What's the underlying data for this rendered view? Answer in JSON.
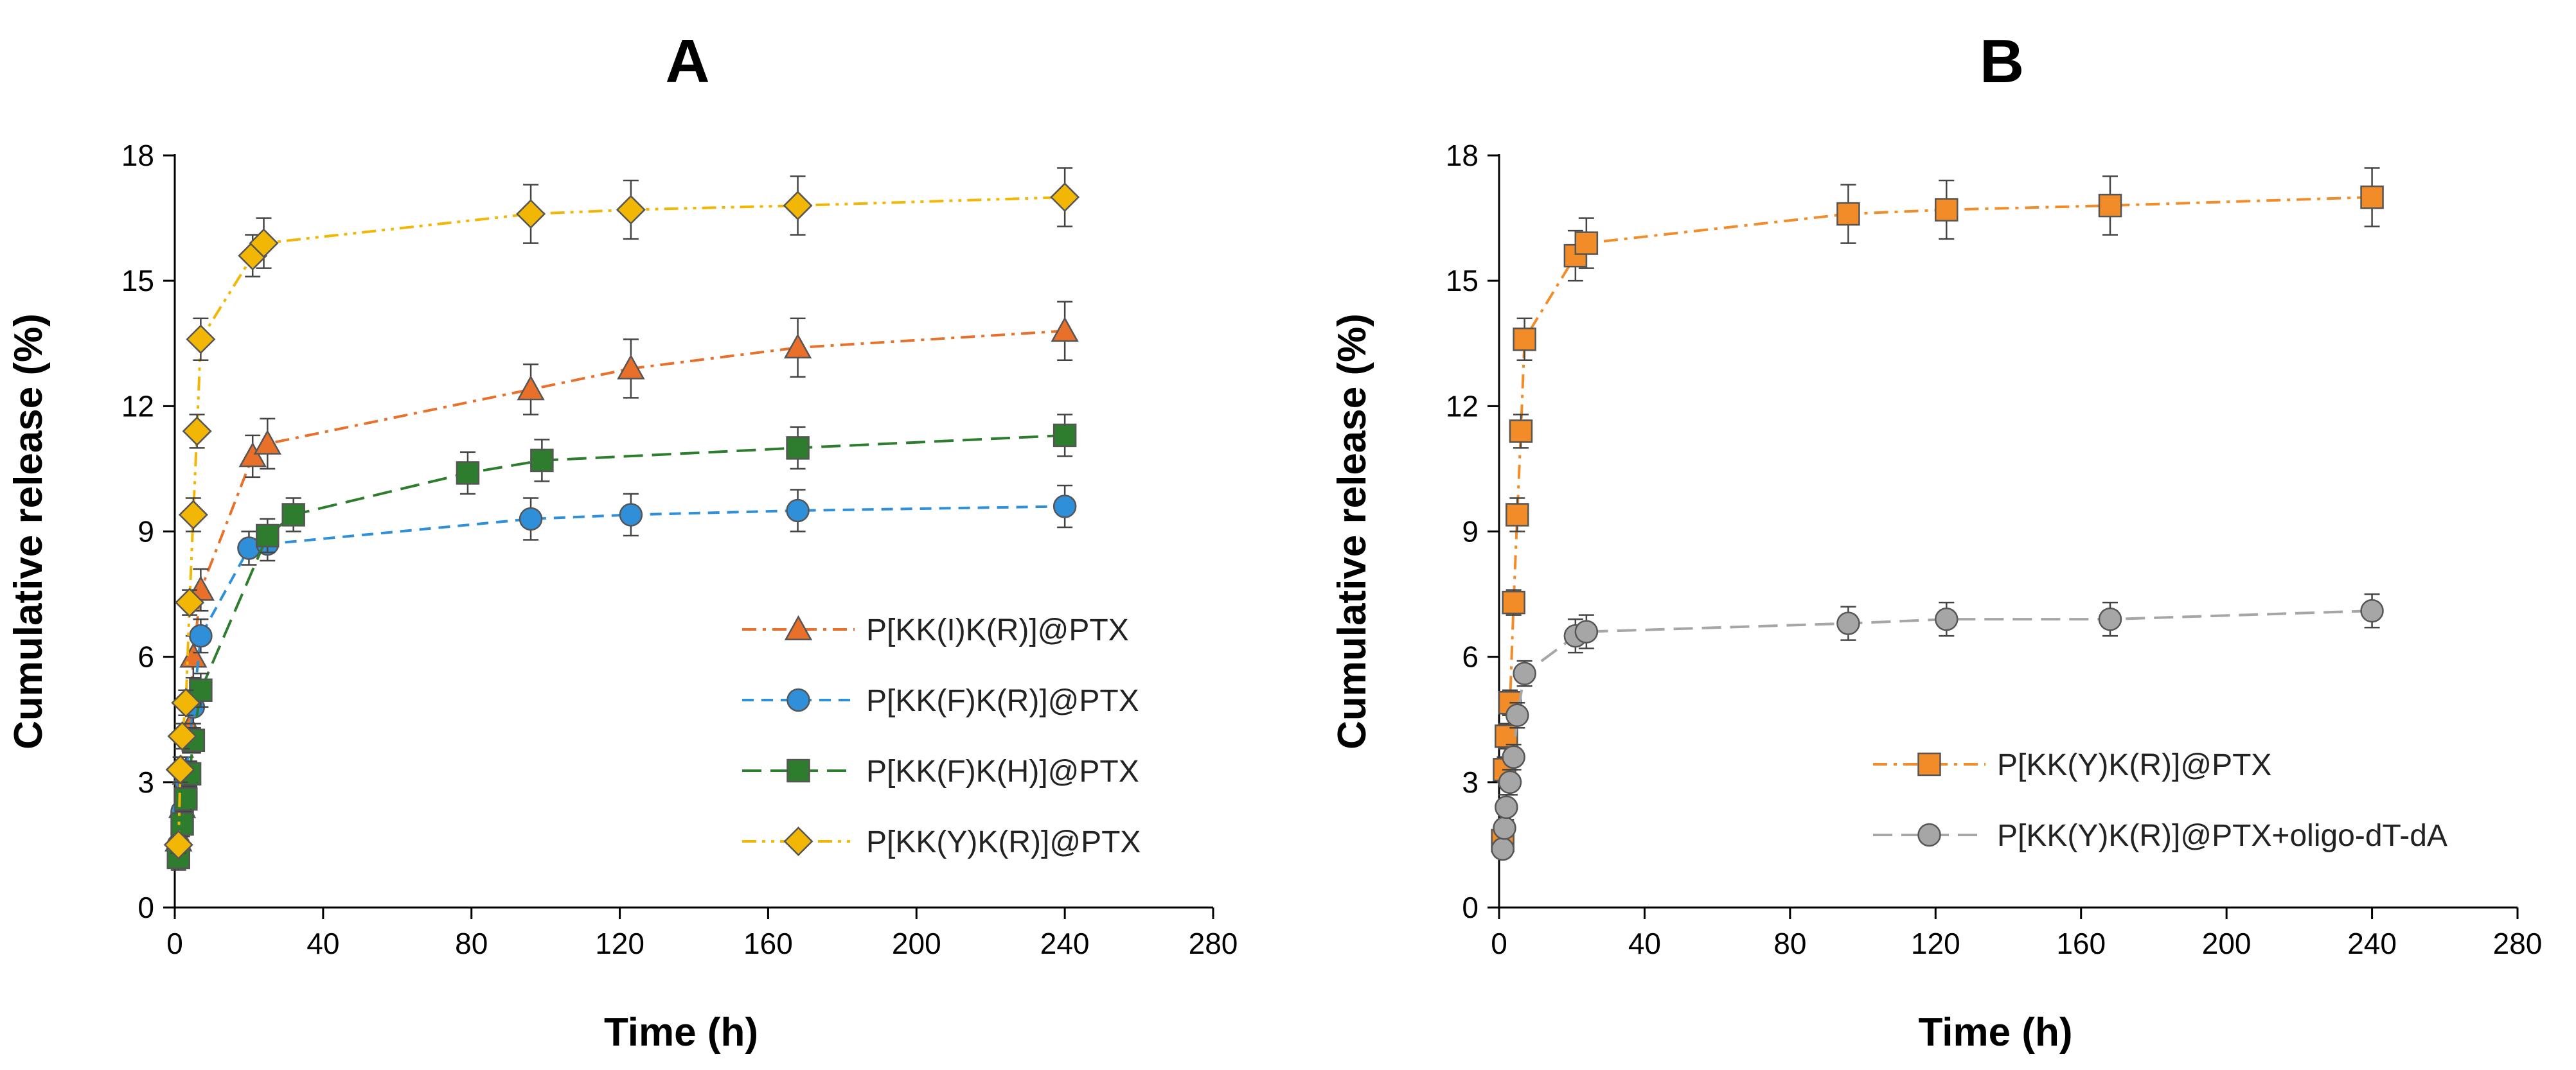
{
  "chart_data": [
    {
      "type": "line",
      "title": "A",
      "xlabel": "Time (h)",
      "ylabel": "Cumulative release (%)",
      "xlim": [
        0,
        280
      ],
      "ylim": [
        0,
        18
      ],
      "xticks": [
        "0",
        "40",
        "80",
        "120",
        "160",
        "200",
        "240",
        "280"
      ],
      "yticks": [
        "0",
        "3",
        "6",
        "9",
        "12",
        "15",
        "18"
      ],
      "legend_position": "center-right",
      "series": [
        {
          "name": "P[KK(I)K(R)]@PTX",
          "color": "#E8702A",
          "marker": "triangle",
          "dash": "dashdot",
          "x": [
            1,
            2,
            3,
            4,
            5,
            7,
            21,
            25,
            96,
            123,
            168,
            240
          ],
          "y": [
            1.6,
            2.4,
            3.2,
            4.3,
            6.0,
            7.6,
            10.8,
            11.1,
            12.4,
            12.9,
            13.4,
            13.8
          ],
          "err": [
            0.3,
            0.3,
            0.4,
            0.4,
            0.5,
            0.5,
            0.5,
            0.6,
            0.6,
            0.7,
            0.7,
            0.7
          ]
        },
        {
          "name": "P[KK(F)K(R)]@PTX",
          "color": "#2F8FD8",
          "marker": "circle",
          "dash": "dash",
          "x": [
            1,
            2,
            3,
            4,
            5,
            7,
            20,
            25,
            96,
            123,
            168,
            240
          ],
          "y": [
            1.5,
            2.3,
            3.0,
            4.0,
            4.8,
            6.5,
            8.6,
            8.7,
            9.3,
            9.4,
            9.5,
            9.6
          ],
          "err": [
            0.3,
            0.3,
            0.3,
            0.3,
            0.4,
            0.4,
            0.4,
            0.4,
            0.5,
            0.5,
            0.5,
            0.5
          ]
        },
        {
          "name": "P[KK(F)K(H)]@PTX",
          "color": "#2E7D2E",
          "marker": "square",
          "dash": "longdash",
          "x": [
            1,
            2,
            3,
            4,
            5,
            7,
            25,
            32,
            79,
            99,
            168,
            240
          ],
          "y": [
            1.2,
            2.0,
            2.6,
            3.2,
            4.0,
            5.2,
            8.9,
            9.4,
            10.4,
            10.7,
            11.0,
            11.3
          ],
          "err": [
            0.3,
            0.3,
            0.3,
            0.3,
            0.3,
            0.4,
            0.4,
            0.4,
            0.5,
            0.5,
            0.5,
            0.5
          ]
        },
        {
          "name": "P[KK(Y)K(R)]@PTX",
          "color": "#F2B705",
          "marker": "diamond",
          "dash": "dashdotdot",
          "x": [
            1,
            1.5,
            2,
            3,
            4,
            5,
            6,
            7,
            21,
            24,
            96,
            123,
            168,
            240
          ],
          "y": [
            1.5,
            3.3,
            4.1,
            4.9,
            7.3,
            9.4,
            11.4,
            13.6,
            15.6,
            15.9,
            16.6,
            16.7,
            16.8,
            17.0
          ],
          "err": [
            0.2,
            0.3,
            0.3,
            0.3,
            0.3,
            0.4,
            0.4,
            0.5,
            0.5,
            0.6,
            0.7,
            0.7,
            0.7,
            0.7
          ]
        }
      ]
    },
    {
      "type": "line",
      "title": "B",
      "xlabel": "Time (h)",
      "ylabel": "Cumulative release (%)",
      "xlim": [
        0,
        280
      ],
      "ylim": [
        0,
        18
      ],
      "xticks": [
        "0",
        "40",
        "80",
        "120",
        "160",
        "200",
        "240",
        "280"
      ],
      "yticks": [
        "0",
        "3",
        "6",
        "9",
        "12",
        "15",
        "18"
      ],
      "legend_position": "lower-right",
      "series": [
        {
          "name": "P[KK(Y)K(R)]@PTX",
          "color": "#F28C28",
          "marker": "square",
          "dash": "dashdot",
          "x": [
            1,
            1.5,
            2,
            3,
            4,
            5,
            6,
            7,
            21,
            24,
            96,
            123,
            168,
            240
          ],
          "y": [
            1.6,
            3.3,
            4.1,
            4.9,
            7.3,
            9.4,
            11.4,
            13.6,
            15.6,
            15.9,
            16.6,
            16.7,
            16.8,
            17.0
          ],
          "err": [
            0.2,
            0.3,
            0.3,
            0.3,
            0.3,
            0.4,
            0.4,
            0.5,
            0.6,
            0.6,
            0.7,
            0.7,
            0.7,
            0.7
          ]
        },
        {
          "name": "P[KK(Y)K(R)]@PTX+oligo-dT-dA",
          "color": "#A6A6A6",
          "marker": "circle",
          "dash": "longdash",
          "x": [
            1,
            1.5,
            2,
            3,
            4,
            5,
            7,
            21,
            24,
            96,
            123,
            168,
            240
          ],
          "y": [
            1.4,
            1.9,
            2.4,
            3.0,
            3.6,
            4.6,
            5.6,
            6.5,
            6.6,
            6.8,
            6.9,
            6.9,
            7.1
          ],
          "err": [
            0.2,
            0.2,
            0.3,
            0.3,
            0.3,
            0.3,
            0.3,
            0.4,
            0.4,
            0.4,
            0.4,
            0.4,
            0.4
          ]
        }
      ]
    }
  ]
}
